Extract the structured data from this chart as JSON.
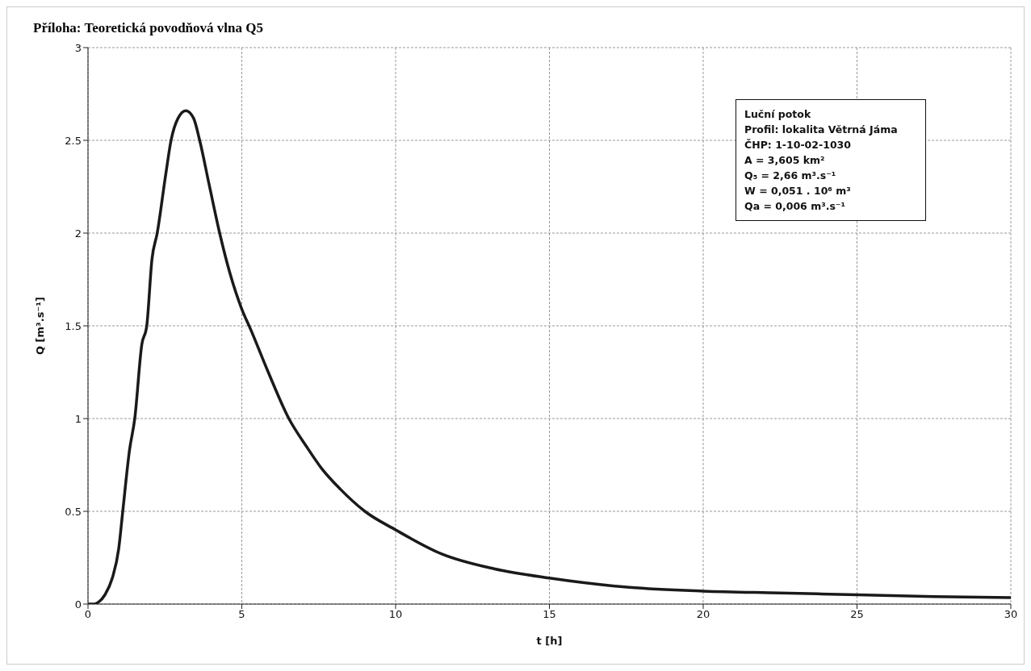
{
  "chart_data": {
    "type": "line",
    "title": "Příloha: Teoretická povodňová vlna Q5",
    "xlabel": "t [h]",
    "ylabel": "Q [m³.s⁻¹]",
    "x": [
      0,
      0.2,
      0.34,
      0.55,
      0.79,
      1.0,
      1.13,
      1.35,
      1.52,
      1.75,
      1.91,
      2.08,
      2.25,
      2.53,
      2.7,
      2.93,
      3.18,
      3.43,
      3.63,
      3.94,
      4.28,
      4.62,
      5.0,
      5.29,
      5.86,
      6.53,
      7.1,
      7.6,
      8.2,
      9.0,
      10,
      11.5,
      13.2,
      15,
      17.6,
      20,
      22.5,
      25,
      27.5,
      30
    ],
    "series": [
      {
        "color": "#1a1a1a",
        "values": [
          0,
          0,
          0.01,
          0.05,
          0.14,
          0.3,
          0.5,
          0.83,
          1.0,
          1.4,
          1.5,
          1.86,
          2.0,
          2.32,
          2.5,
          2.62,
          2.66,
          2.62,
          2.5,
          2.26,
          2.0,
          1.78,
          1.59,
          1.48,
          1.25,
          1.0,
          0.85,
          0.73,
          0.62,
          0.5,
          0.4,
          0.27,
          0.19,
          0.14,
          0.09,
          0.07,
          0.06,
          0.05,
          0.04,
          0.035
        ]
      }
    ],
    "xlim": [
      0,
      30
    ],
    "xticks": [
      0,
      5,
      10,
      15,
      20,
      25,
      30
    ],
    "ylim": [
      0,
      3
    ],
    "yticks": [
      0,
      0.5,
      1,
      1.5,
      2,
      2.5,
      3
    ],
    "grid": true,
    "marker": "none",
    "line_style": "solid",
    "legend": false,
    "annotations": [
      "Luční potok",
      "Profil: lokalita Větrná Jáma",
      "ČHP: 1-10-02-1030",
      "A = 3,605 km²",
      "Q₅  = 2,66 m³.s⁻¹",
      "W  = 0,051 . 10⁶ m³",
      "Qa = 0,006 m³.s⁻¹"
    ]
  }
}
